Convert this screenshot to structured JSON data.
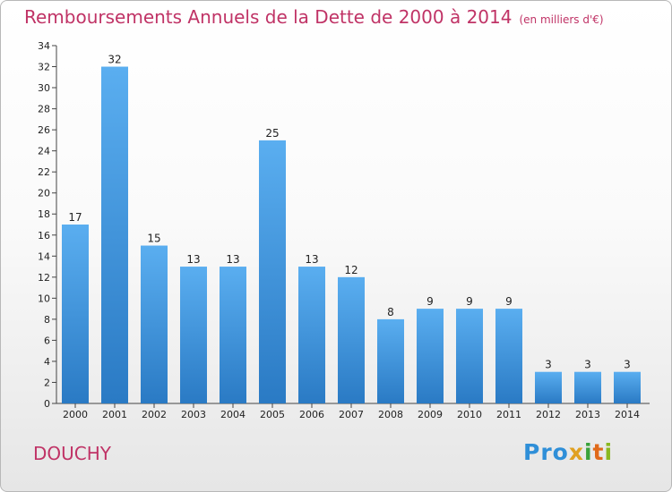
{
  "chart_data": {
    "type": "bar",
    "title": "Remboursements Annuels de la Dette de 2000 à 2014",
    "subtitle": "(en milliers d'€)",
    "categories": [
      "2000",
      "2001",
      "2002",
      "2003",
      "2004",
      "2005",
      "2006",
      "2007",
      "2008",
      "2009",
      "2010",
      "2011",
      "2012",
      "2013",
      "2014"
    ],
    "values": [
      17,
      32,
      15,
      13,
      13,
      25,
      13,
      12,
      8,
      9,
      9,
      9,
      3,
      3,
      3
    ],
    "ylim": [
      0,
      34
    ],
    "yticks": [
      0,
      2,
      4,
      6,
      8,
      10,
      12,
      14,
      16,
      18,
      20,
      22,
      24,
      26,
      28,
      30,
      32,
      34
    ],
    "grid": false,
    "bar_color": "#4a9fe0",
    "bar_color_dark": "#2a7ac4"
  },
  "footer": {
    "place": "DOUCHY",
    "logo": [
      "Pro",
      "x",
      "i",
      "t",
      "i"
    ]
  }
}
